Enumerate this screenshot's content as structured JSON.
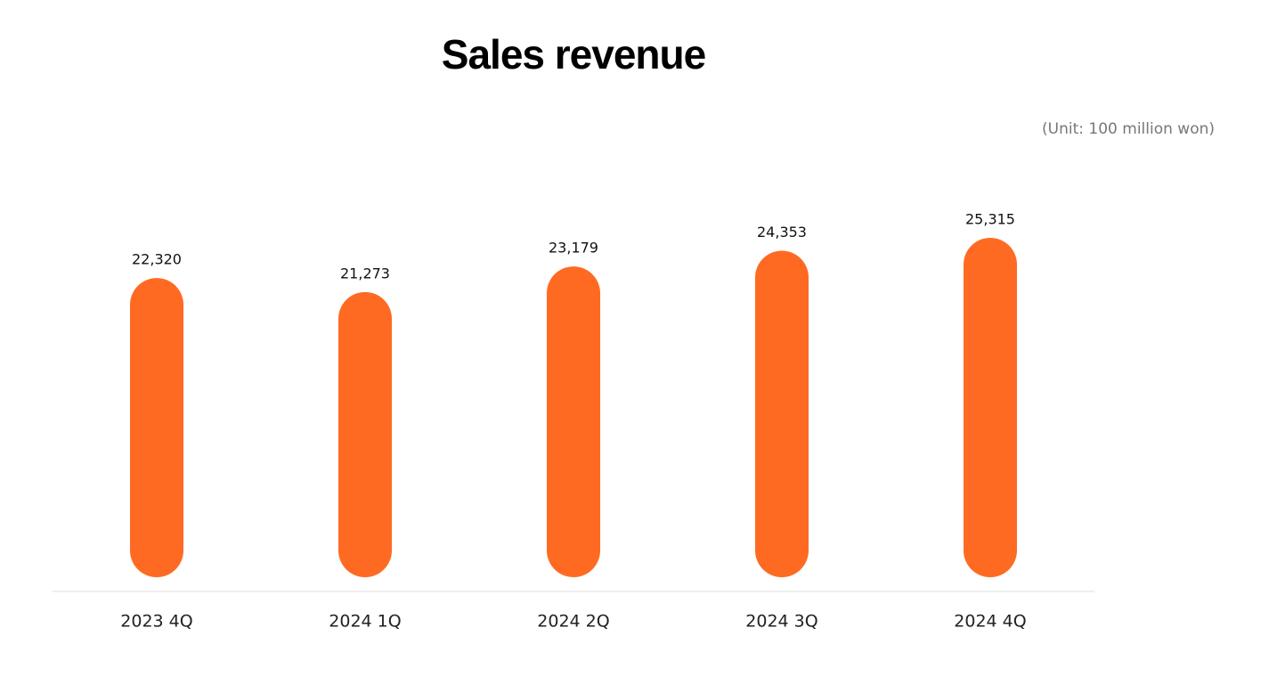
{
  "chart_data": {
    "type": "bar",
    "title": "Sales revenue",
    "subtitle": "(Unit: 100 million won)",
    "categories": [
      "2023 4Q",
      "2024 1Q",
      "2024 2Q",
      "2024 3Q",
      "2024 4Q"
    ],
    "values": [
      22320,
      21273,
      23179,
      24353,
      25315
    ],
    "value_labels": [
      "22,320",
      "21,273",
      "23,179",
      "24,353",
      "25,315"
    ],
    "color": "#ff6a22"
  }
}
